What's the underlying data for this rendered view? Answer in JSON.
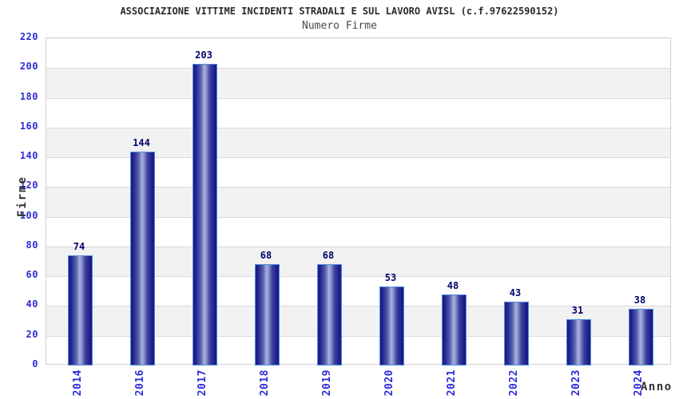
{
  "header": {
    "title": "ASSOCIAZIONE VITTIME INCIDENTI STRADALI E SUL LAVORO AVISL (c.f.97622590152)",
    "subtitle": "Numero Firme"
  },
  "chart_data": {
    "type": "bar",
    "title": "ASSOCIAZIONE VITTIME INCIDENTI STRADALI E SUL LAVORO AVISL (c.f.97622590152)",
    "subtitle": "Numero Firme",
    "categories": [
      "2014",
      "2016",
      "2017",
      "2018",
      "2019",
      "2020",
      "2021",
      "2022",
      "2023",
      "2024"
    ],
    "values": [
      74,
      144,
      203,
      68,
      68,
      53,
      48,
      43,
      31,
      38
    ],
    "xlabel": "Anno",
    "ylabel": "Firme",
    "ylim": [
      0,
      220
    ],
    "ytick_step": 20,
    "yticks": [
      0,
      20,
      40,
      60,
      80,
      100,
      120,
      140,
      160,
      180,
      200,
      220
    ],
    "legend": "none",
    "grid": "horizontal-lines-with-alternating-bands",
    "colors": {
      "bar_dark": "#191985",
      "bar_light": "#a7afdc",
      "bar_border": "#4d8fdd",
      "axis_tick_label": "#2d2dd8",
      "value_label": "#00006e",
      "band_gray": "#f2f2f2",
      "grid_line": "#dadada",
      "plot_border": "#d0d0d0",
      "title_color": "#2b2b2b",
      "subtitle_color": "#4a4a4a"
    }
  }
}
